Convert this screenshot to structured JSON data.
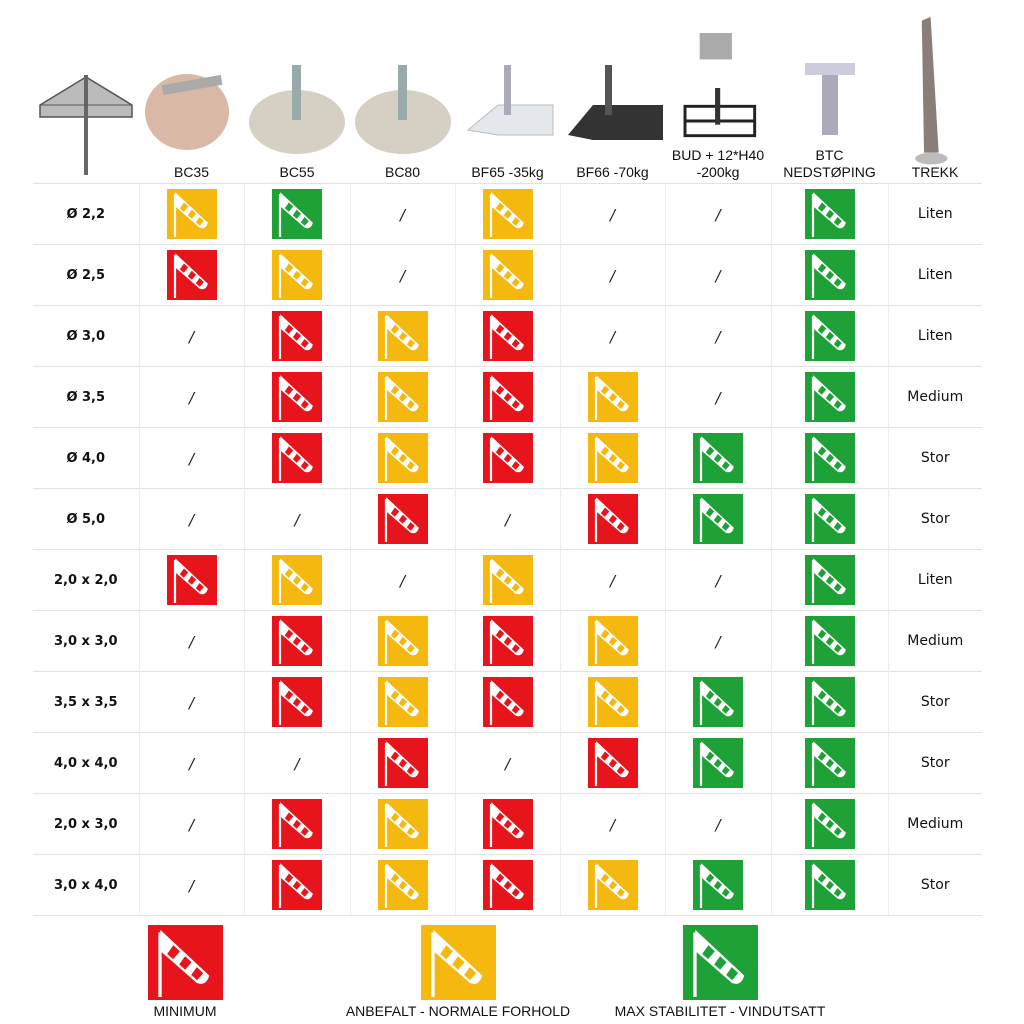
{
  "colors": {
    "minimum": "#e8141b",
    "anbefalt": "#f5b80e",
    "max": "#1ea238"
  },
  "header": {
    "columns": [
      {
        "label": "BC35",
        "image": "granite-base-with-clamp"
      },
      {
        "label": "BC55",
        "image": "granite-round-base"
      },
      {
        "label": "BC80",
        "image": "granite-round-base"
      },
      {
        "label": "BF65 -35kg",
        "image": "silver-steel-plate"
      },
      {
        "label": "BF66 -70kg",
        "image": "black-steel-plate"
      },
      {
        "label": "BUD + 12*H40 -200kg",
        "image": "cross-base-with-tiles"
      },
      {
        "label": "BTC NEDSTØPING",
        "image": "ground-anchor"
      },
      {
        "label": "TREKK",
        "image": "umbrella-cover"
      }
    ]
  },
  "rows": [
    {
      "size": "Ø 2,2",
      "cells": [
        "Y",
        "G",
        "/",
        "Y",
        "/",
        "/",
        "G"
      ],
      "trekk": "Liten"
    },
    {
      "size": "Ø 2,5",
      "cells": [
        "R",
        "Y",
        "/",
        "Y",
        "/",
        "/",
        "G"
      ],
      "trekk": "Liten"
    },
    {
      "size": "Ø 3,0",
      "cells": [
        "/",
        "R",
        "Y",
        "R",
        "/",
        "/",
        "G"
      ],
      "trekk": "Liten"
    },
    {
      "size": "Ø 3,5",
      "cells": [
        "/",
        "R",
        "Y",
        "R",
        "Y",
        "/",
        "G"
      ],
      "trekk": "Medium"
    },
    {
      "size": "Ø 4,0",
      "cells": [
        "/",
        "R",
        "Y",
        "R",
        "Y",
        "G",
        "G"
      ],
      "trekk": "Stor"
    },
    {
      "size": "Ø 5,0",
      "cells": [
        "/",
        "/",
        "R",
        "/",
        "R",
        "G",
        "G"
      ],
      "trekk": "Stor"
    },
    {
      "size": "2,0 x 2,0",
      "cells": [
        "R",
        "Y",
        "/",
        "Y",
        "/",
        "/",
        "G"
      ],
      "trekk": "Liten"
    },
    {
      "size": "3,0 x 3,0",
      "cells": [
        "/",
        "R",
        "Y",
        "R",
        "Y",
        "/",
        "G"
      ],
      "trekk": "Medium"
    },
    {
      "size": "3,5 x 3,5",
      "cells": [
        "/",
        "R",
        "Y",
        "R",
        "Y",
        "G",
        "G"
      ],
      "trekk": "Stor"
    },
    {
      "size": "4,0 x 4,0",
      "cells": [
        "/",
        "/",
        "R",
        "/",
        "R",
        "G",
        "G"
      ],
      "trekk": "Stor"
    },
    {
      "size": "2,0 x 3,0",
      "cells": [
        "/",
        "R",
        "Y",
        "R",
        "/",
        "/",
        "G"
      ],
      "trekk": "Medium"
    },
    {
      "size": "3,0 x 4,0",
      "cells": [
        "/",
        "R",
        "Y",
        "R",
        "Y",
        "G",
        "G"
      ],
      "trekk": "Stor"
    }
  ],
  "legend": {
    "minimum": "MINIMUM",
    "anbefalt": "ANBEFALT - NORMALE FORHOLD",
    "max": "MAX STABILITET - VINDUTSATT"
  }
}
